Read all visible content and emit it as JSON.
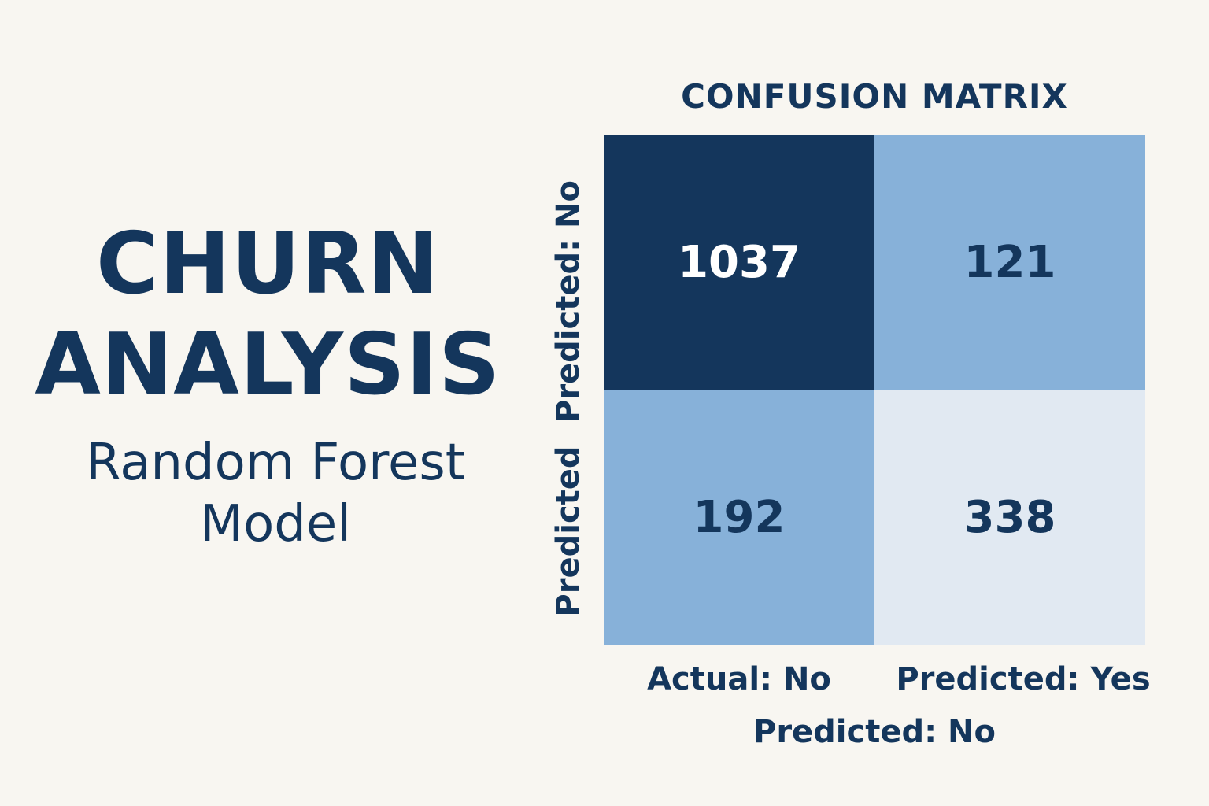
{
  "headline": {
    "line1": "CHURN",
    "line2": "ANALYSIS",
    "sub1": "Random Forest",
    "sub2": "Model"
  },
  "chart_data": {
    "type": "heatmap",
    "title": "CONFUSION MATRIX",
    "row_labels": [
      "Predicted: No",
      "Predicted"
    ],
    "column_labels": [
      "Actual: No",
      "Predicted: Yes"
    ],
    "xlabel": "Predicted: No",
    "values": [
      [
        1037,
        121
      ],
      [
        192,
        338
      ]
    ],
    "colors": {
      "dark": "#14365c",
      "mid": "#87b1d9",
      "light": "#e1e9f2",
      "text_dark": "#14365c",
      "text_light": "#ffffff"
    }
  }
}
